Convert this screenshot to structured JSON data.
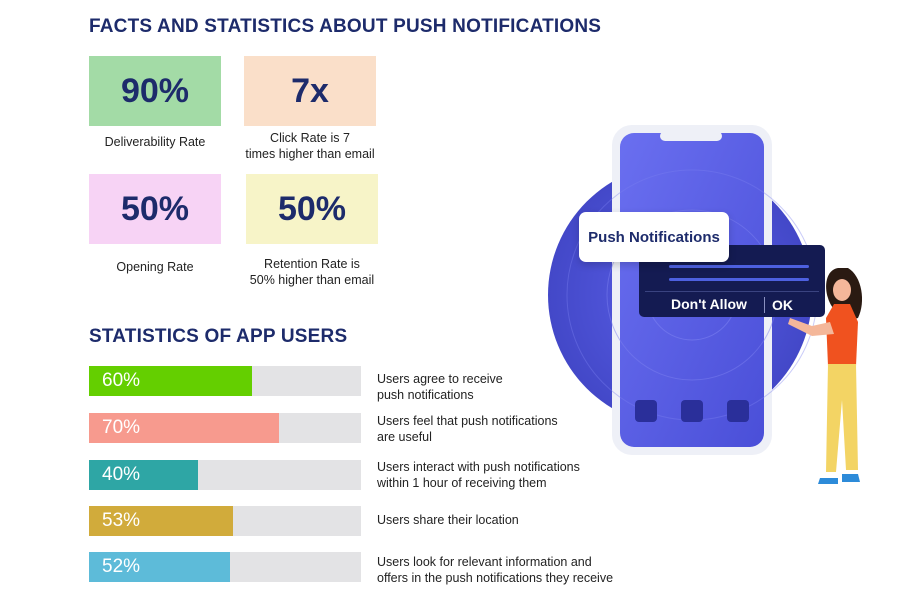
{
  "facts": {
    "heading": "FACTS AND STATISTICS ABOUT PUSH NOTIFICATIONS",
    "items": [
      {
        "value": "90%",
        "caption": "Deliverability Rate",
        "color": "#a3dba6"
      },
      {
        "value": "7x",
        "caption_line1": "Click Rate is 7",
        "caption_line2": "times higher than email",
        "color": "#fadfc9"
      },
      {
        "value": "50%",
        "caption": "Opening Rate",
        "color": "#f7d3f5"
      },
      {
        "value": "50%",
        "caption_line1": "Retention Rate is",
        "caption_line2": "50% higher than email",
        "color": "#f7f4c8"
      }
    ]
  },
  "users": {
    "heading": "STATISTICS OF APP USERS",
    "bars": [
      {
        "percent_label": "60%",
        "value": 60,
        "color": "#64cf00",
        "desc_line1": "Users agree to receive",
        "desc_line2": "push notifications"
      },
      {
        "percent_label": "70%",
        "value": 70,
        "color": "#f79a8e",
        "desc_line1": "Users feel that push notifications",
        "desc_line2": "are useful"
      },
      {
        "percent_label": "40%",
        "value": 40,
        "color": "#2ea6a5",
        "desc_line1": "Users interact with push notifications",
        "desc_line2": "within 1 hour of receiving them"
      },
      {
        "percent_label": "53%",
        "value": 53,
        "color": "#d1ab3b",
        "desc_line1": "Users share their location",
        "desc_line2": ""
      },
      {
        "percent_label": "52%",
        "value": 52,
        "color": "#5dbbd9",
        "desc_line1": "Users look for relevant information and",
        "desc_line2": "offers in the push notifications they receive"
      }
    ]
  },
  "illustration": {
    "notification_title": "Push Notifications",
    "dont_allow_label": "Don't Allow",
    "ok_label": "OK",
    "phone_color": "#5b5fe6",
    "panel_color": "#141b52",
    "icons": [
      "smartphone-icon",
      "woman-figure-icon",
      "app-icon"
    ]
  }
}
